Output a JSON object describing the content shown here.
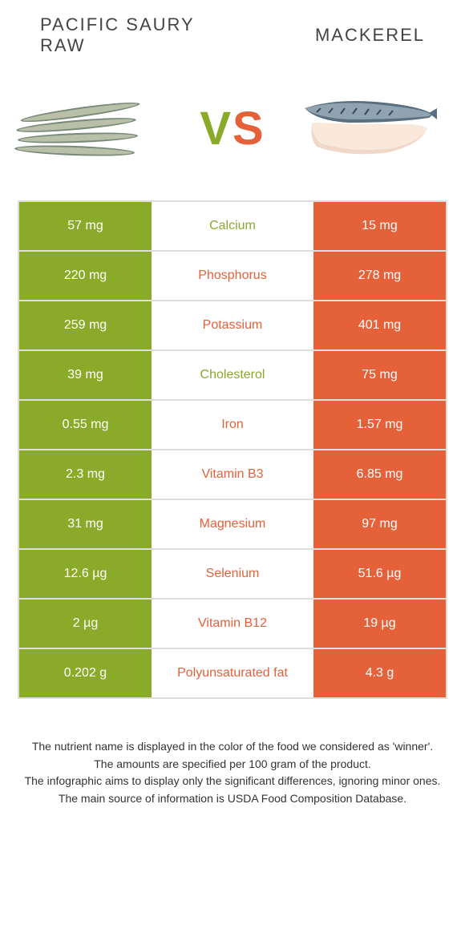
{
  "colors": {
    "left_food": "#8aaa2a",
    "right_food": "#e4613a",
    "border": "#dddddd"
  },
  "header": {
    "left_title": "Pacific saury raw",
    "right_title": "Mackerel"
  },
  "vs": {
    "v": "V",
    "s": "S"
  },
  "rows": [
    {
      "left": "57 mg",
      "label": "Calcium",
      "right": "15 mg",
      "winner": "left"
    },
    {
      "left": "220 mg",
      "label": "Phosphorus",
      "right": "278 mg",
      "winner": "right"
    },
    {
      "left": "259 mg",
      "label": "Potassium",
      "right": "401 mg",
      "winner": "right"
    },
    {
      "left": "39 mg",
      "label": "Cholesterol",
      "right": "75 mg",
      "winner": "left"
    },
    {
      "left": "0.55 mg",
      "label": "Iron",
      "right": "1.57 mg",
      "winner": "right"
    },
    {
      "left": "2.3 mg",
      "label": "Vitamin B3",
      "right": "6.85 mg",
      "winner": "right"
    },
    {
      "left": "31 mg",
      "label": "Magnesium",
      "right": "97 mg",
      "winner": "right"
    },
    {
      "left": "12.6 µg",
      "label": "Selenium",
      "right": "51.6 µg",
      "winner": "right"
    },
    {
      "left": "2 µg",
      "label": "Vitamin B12",
      "right": "19 µg",
      "winner": "right"
    },
    {
      "left": "0.202 g",
      "label": "Polyunsaturated fat",
      "right": "4.3 g",
      "winner": "right"
    }
  ],
  "footnotes": [
    "The nutrient name is displayed in the color of the food we considered as 'winner'.",
    "The amounts are specified per 100 gram of the product.",
    "The infographic aims to display only the significant differences, ignoring minor ones.",
    "The main source of information is USDA Food Composition Database."
  ]
}
